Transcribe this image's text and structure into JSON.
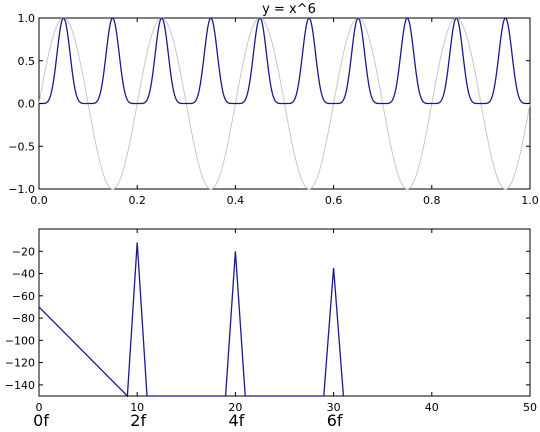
{
  "chart_data": [
    {
      "type": "line",
      "title": "y = x^6",
      "xlabel": "",
      "ylabel": "",
      "xlim": [
        0.0,
        1.0
      ],
      "ylim": [
        -1.0,
        1.0
      ],
      "xticks": [
        "0.0",
        "0.2",
        "0.4",
        "0.6",
        "0.8",
        "1.0"
      ],
      "yticks": [
        "1.0",
        "0.5",
        "0.0",
        "−0.5",
        "−1.0"
      ],
      "grid": false,
      "series": [
        {
          "function": "sin(2*pi*5*x)",
          "frequency": 5,
          "exponent": 1,
          "color": "#c8c8c8"
        },
        {
          "function": "sin(2*pi*5*x)^6",
          "frequency": 5,
          "exponent": 6,
          "color": "#1a1a8c"
        }
      ]
    },
    {
      "type": "line",
      "title": "",
      "xlabel": "",
      "ylabel": "",
      "xlim": [
        0,
        50
      ],
      "ylim": [
        -150,
        0
      ],
      "xticks": [
        "0",
        "10",
        "20",
        "30",
        "40",
        "50"
      ],
      "yticks": [
        "−20",
        "−40",
        "−60",
        "−80",
        "−100",
        "−120",
        "−140"
      ],
      "grid": false,
      "x": [
        0,
        9,
        10,
        11,
        19,
        20,
        21,
        29,
        30,
        31
      ],
      "y": [
        -70,
        -150,
        -12,
        -150,
        -150,
        -20,
        -150,
        -150,
        -35,
        -150
      ],
      "color": "#1a1a8c",
      "harmonic_labels": [
        {
          "at": 0,
          "text": "0f"
        },
        {
          "at": 10,
          "text": "2f"
        },
        {
          "at": 20,
          "text": "4f"
        },
        {
          "at": 30,
          "text": "6f"
        }
      ]
    }
  ]
}
